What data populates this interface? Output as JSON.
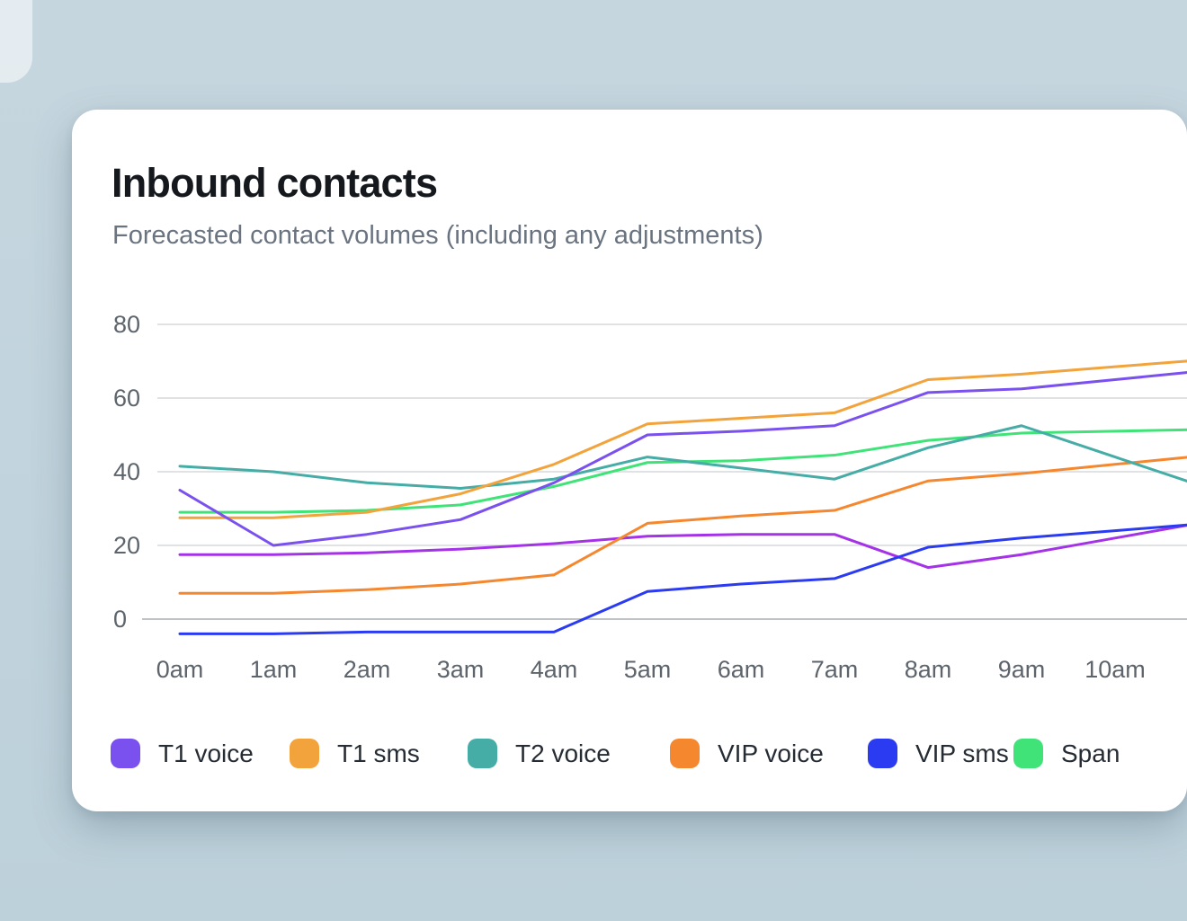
{
  "page": {
    "background_color": "#c2d4dd",
    "card_color": "#ffffff",
    "title_color": "#15191e",
    "subtitle_color": "#6a7380",
    "axis_label_color": "#5d646c",
    "grid_color": "#d7d9db",
    "grid_zero_color": "#bfc3c6"
  },
  "card": {
    "title": "Inbound contacts",
    "subtitle": "Forecasted contact volumes (including any adjustments)"
  },
  "chart_data": {
    "type": "line",
    "title": "Inbound contacts",
    "x_labels": [
      "0am",
      "1am",
      "2am",
      "3am",
      "4am",
      "5am",
      "6am",
      "7am",
      "8am",
      "9am",
      "10am"
    ],
    "y_ticks": [
      0,
      20,
      40,
      60,
      80
    ],
    "ylim": [
      -8,
      84
    ],
    "grid": "horizontal-only",
    "legend_position": "bottom",
    "legend": [
      "T1 voice",
      "T1 sms",
      "T2 voice",
      "VIP voice",
      "VIP sms",
      "Span"
    ],
    "series": [
      {
        "name": "T1 voice",
        "color": "#7a51ef",
        "values": [
          35,
          20,
          23,
          27,
          37,
          50,
          51,
          52.5,
          61.5,
          62.5,
          65
        ]
      },
      {
        "name": "T1 sms",
        "color": "#f2a33c",
        "values": [
          27.5,
          27.5,
          29,
          34,
          42,
          53,
          54.5,
          56,
          65,
          66.5,
          68.5
        ]
      },
      {
        "name": "T2 voice",
        "color": "#46aca6",
        "values": [
          41.5,
          40,
          37,
          35.5,
          38,
          44,
          41,
          38,
          46.5,
          52.5,
          44
        ]
      },
      {
        "name": "VIP voice",
        "color": "#f5872f",
        "values": [
          7,
          7,
          8,
          9.5,
          12,
          26,
          28,
          29.5,
          37.5,
          39.5,
          42
        ]
      },
      {
        "name": "VIP sms",
        "color": "#2b3bf2",
        "values": [
          -4,
          -4,
          -3.5,
          -3.5,
          -3.5,
          7.5,
          9.5,
          11,
          19.5,
          22,
          24
        ]
      },
      {
        "name": "Span",
        "color": "#3fe378",
        "values": [
          29,
          29,
          29.5,
          31,
          36,
          42.5,
          43,
          44.5,
          48.5,
          50.5,
          51
        ]
      },
      {
        "name": "",
        "color": "#a433e8",
        "values": [
          17.5,
          17.5,
          18,
          19,
          20.5,
          22.5,
          23,
          23,
          14,
          17.5,
          22
        ]
      }
    ]
  }
}
